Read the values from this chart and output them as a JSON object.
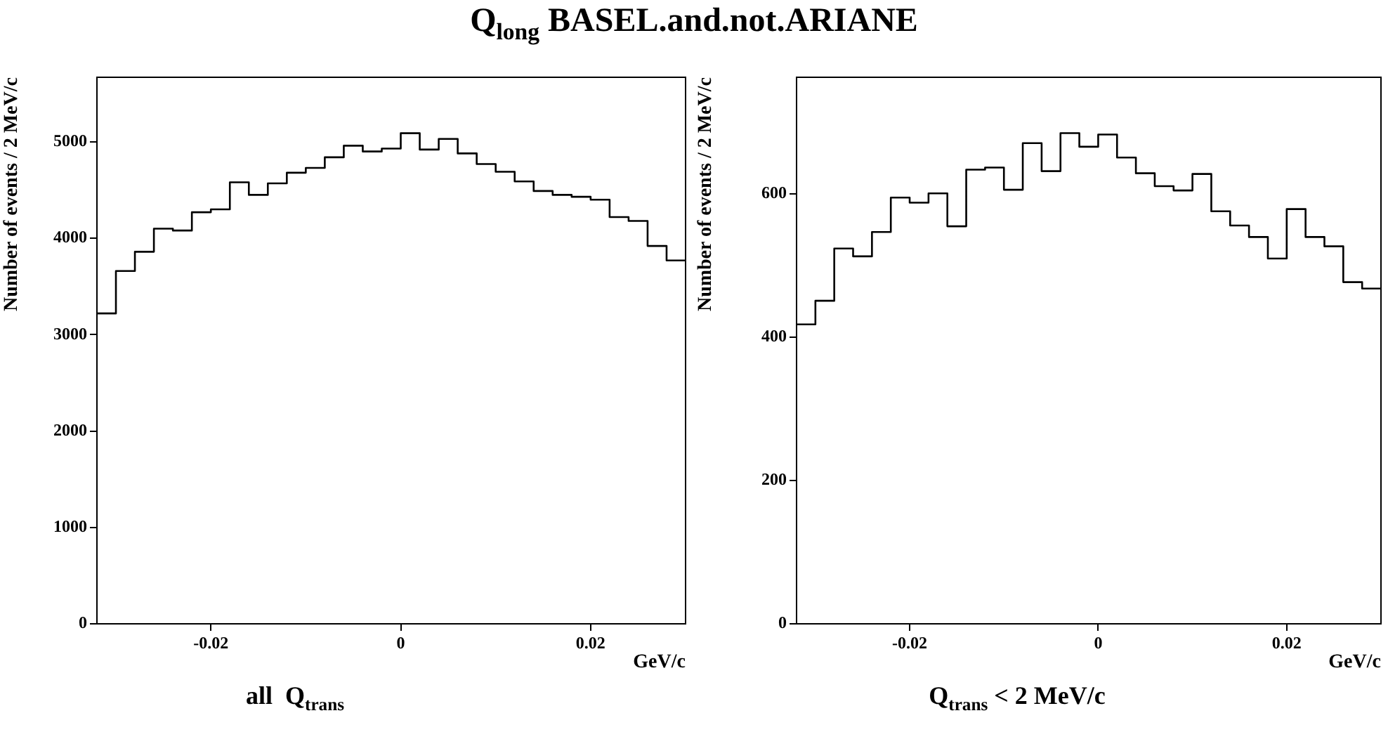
{
  "chart_data": [
    {
      "type": "histogram",
      "title": "Q$_{long}$  BASEL.and.not.ARIANE",
      "xlabel": "GeV/c",
      "ylabel": "Number of events / 2 MeV/c",
      "annotations": [
        "all  Q$_{trans}$"
      ],
      "bins": [
        -0.032,
        -0.03,
        -0.028,
        -0.026,
        -0.024,
        -0.022,
        -0.02,
        -0.018,
        -0.016,
        -0.014,
        -0.012,
        -0.01,
        -0.008,
        -0.006,
        -0.004,
        -0.002,
        0,
        0.002,
        0.004,
        0.006,
        0.008,
        0.01,
        0.012,
        0.014,
        0.016,
        0.018,
        0.02,
        0.022,
        0.024,
        0.026,
        0.028,
        0.03
      ],
      "values": [
        3220,
        3660,
        3860,
        4100,
        4080,
        4270,
        4300,
        4580,
        4450,
        4570,
        4680,
        4730,
        4840,
        4960,
        4900,
        4930,
        5090,
        4920,
        5030,
        4880,
        4770,
        4690,
        4590,
        4490,
        4450,
        4430,
        4400,
        4220,
        4180,
        3920,
        3770
      ],
      "color": "#000000",
      "xlim": [
        -0.032,
        0.03
      ],
      "ylim": [
        0,
        5670
      ],
      "xticks": [
        -0.02,
        0,
        0.02
      ],
      "yticks": [
        0,
        1000,
        2000,
        3000,
        4000,
        5000
      ]
    },
    {
      "type": "histogram",
      "xlabel": "GeV/c",
      "ylabel": "Number of events / 2 MeV/c",
      "annotations": [
        "Q$_{trans}$ < 2 MeV/c"
      ],
      "bins": [
        -0.032,
        -0.03,
        -0.028,
        -0.026,
        -0.024,
        -0.022,
        -0.02,
        -0.018,
        -0.016,
        -0.014,
        -0.012,
        -0.01,
        -0.008,
        -0.006,
        -0.004,
        -0.002,
        0,
        0.002,
        0.004,
        0.006,
        0.008,
        0.01,
        0.012,
        0.014,
        0.016,
        0.018,
        0.02,
        0.022,
        0.024,
        0.026,
        0.028,
        0.03
      ],
      "values": [
        418,
        451,
        524,
        513,
        547,
        595,
        588,
        601,
        555,
        634,
        637,
        606,
        671,
        632,
        685,
        666,
        683,
        651,
        629,
        611,
        605,
        628,
        576,
        556,
        540,
        510,
        579,
        540,
        527,
        477,
        468
      ],
      "color": "#000000",
      "xlim": [
        -0.032,
        0.03
      ],
      "ylim": [
        0,
        763
      ],
      "xticks": [
        -0.02,
        0,
        0.02
      ],
      "yticks": [
        0,
        200,
        400,
        600
      ]
    }
  ]
}
